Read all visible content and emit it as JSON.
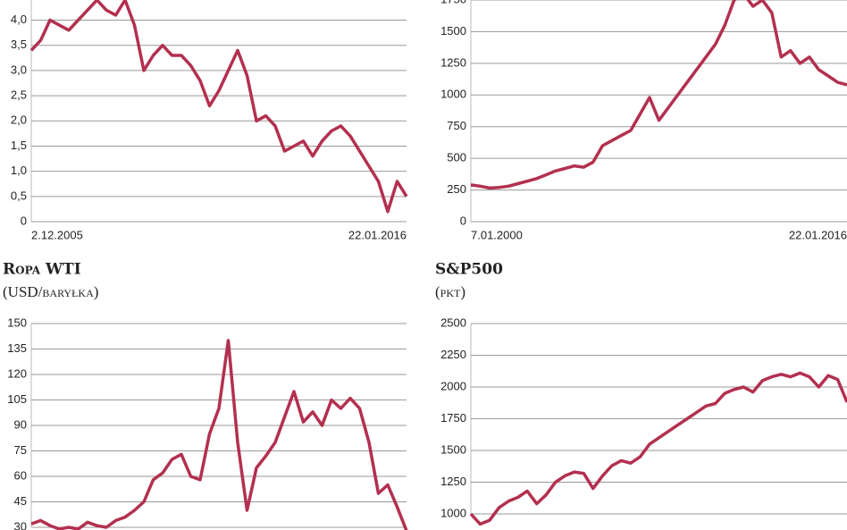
{
  "chart_data": [
    {
      "type": "line",
      "categories": [
        "2.12.2005",
        null,
        null,
        null,
        null,
        null,
        null,
        null,
        null,
        null,
        null,
        null,
        null,
        null,
        null,
        null,
        null,
        null,
        null,
        null,
        null,
        null,
        null,
        null,
        null,
        null,
        null,
        null,
        null,
        null,
        null,
        null,
        null,
        null,
        null,
        null,
        null,
        null,
        null,
        null,
        "22.01.2016"
      ],
      "series": [
        {
          "color": "#b3304f",
          "values": [
            3.4,
            3.6,
            4.0,
            3.9,
            3.8,
            4.0,
            4.2,
            4.4,
            4.2,
            4.1,
            4.4,
            3.9,
            3.0,
            3.3,
            3.5,
            3.3,
            3.3,
            3.1,
            2.8,
            2.3,
            2.6,
            3.0,
            3.4,
            2.9,
            2.0,
            2.1,
            1.9,
            1.4,
            1.5,
            1.6,
            1.3,
            1.6,
            1.8,
            1.9,
            1.7,
            1.4,
            1.1,
            0.8,
            0.2,
            0.8,
            0.5
          ]
        }
      ],
      "ylim": [
        0,
        4.4
      ],
      "yticks": [
        0,
        {
          "value": 0.5,
          "label": "0,5"
        },
        {
          "value": 1.0,
          "label": "1,0"
        },
        {
          "value": 1.5,
          "label": "1,5"
        },
        {
          "value": 2.0,
          "label": "2,0"
        },
        {
          "value": 2.5,
          "label": "2,5"
        },
        {
          "value": 3.0,
          "label": "3,0"
        },
        {
          "value": 3.5,
          "label": "3,5"
        },
        {
          "value": 4.0,
          "label": "4,0"
        }
      ],
      "grid": true
    },
    {
      "type": "line",
      "categories": [
        "7.01.2000",
        null,
        null,
        null,
        null,
        null,
        null,
        null,
        null,
        null,
        null,
        null,
        null,
        null,
        null,
        null,
        null,
        null,
        null,
        null,
        null,
        null,
        null,
        null,
        null,
        null,
        null,
        null,
        null,
        null,
        null,
        null,
        null,
        null,
        null,
        null,
        null,
        null,
        null,
        null,
        "22.01.2016"
      ],
      "series": [
        {
          "color": "#b3304f",
          "values": [
            290,
            280,
            265,
            270,
            280,
            300,
            320,
            340,
            370,
            400,
            420,
            440,
            430,
            470,
            600,
            640,
            680,
            720,
            850,
            980,
            800,
            900,
            1000,
            1100,
            1200,
            1300,
            1400,
            1550,
            1750,
            1800,
            1700,
            1750,
            1650,
            1300,
            1350,
            1250,
            1300,
            1200,
            1150,
            1100,
            1080
          ]
        }
      ],
      "ylim": [
        0,
        1750
      ],
      "yticks": [
        0,
        250,
        500,
        750,
        1000,
        1250,
        1500,
        1750
      ],
      "grid": true
    },
    {
      "type": "line",
      "title": "Ropa WTI",
      "subtitle": "(USD/baryłka)",
      "series": [
        {
          "color": "#b3304f",
          "values": [
            32,
            34,
            31,
            29,
            30,
            29,
            33,
            31,
            30,
            34,
            36,
            40,
            45,
            58,
            62,
            70,
            73,
            60,
            58,
            85,
            100,
            140,
            80,
            40,
            65,
            72,
            80,
            95,
            110,
            92,
            98,
            90,
            105,
            100,
            106,
            100,
            80,
            50,
            55,
            42,
            28
          ]
        }
      ],
      "ylim": [
        30,
        150
      ],
      "yticks": [
        30,
        45,
        60,
        75,
        90,
        105,
        120,
        135,
        150
      ],
      "grid": true
    },
    {
      "type": "line",
      "title": "S&P500",
      "subtitle": "(pkt)",
      "series": [
        {
          "color": "#b3304f",
          "values": [
            1000,
            920,
            950,
            1050,
            1100,
            1130,
            1180,
            1080,
            1150,
            1250,
            1300,
            1330,
            1320,
            1200,
            1300,
            1380,
            1420,
            1400,
            1450,
            1550,
            1600,
            1650,
            1700,
            1750,
            1800,
            1850,
            1870,
            1950,
            1980,
            2000,
            1960,
            2050,
            2080,
            2100,
            2080,
            2110,
            2080,
            2000,
            2090,
            2060,
            1880
          ]
        }
      ],
      "ylim": [
        1000,
        2500
      ],
      "yticks": [
        1000,
        1250,
        1500,
        1750,
        2000,
        2250,
        2500
      ],
      "grid": true
    }
  ]
}
